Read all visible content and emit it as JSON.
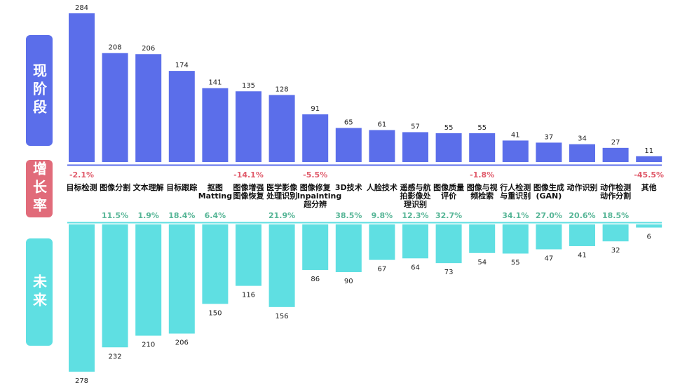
{
  "side_labels": {
    "current": "现阶段",
    "growth": "增长率",
    "future": "未来"
  },
  "colors": {
    "current_bar": "#5b6eea",
    "future_bar": "#5fdfe2",
    "negative_growth": "#e05a6a",
    "positive_growth": "#56b596",
    "divider_top": "#5b6eea",
    "divider_bottom": "#5fdfe2"
  },
  "chart_data": {
    "type": "bar",
    "title": "",
    "categories": [
      "目标检测",
      "图像分割",
      "文本理解",
      "目标跟踪",
      "抠图\nMatting",
      "图像增强\n图像恢复",
      "医学影像\n处理识别",
      "图像修复\nInpainting\n超分辨",
      "3D技术",
      "人脸技术",
      "遥感与航\n拍影像处\n理识别",
      "图像质量\n评价",
      "图像与视\n频检索",
      "行人检测\n与重识别",
      "图像生成\n(GAN)",
      "动作识别",
      "动作检测\n动作分割",
      "其他"
    ],
    "series": [
      {
        "name": "现阶段",
        "values": [
          284,
          208,
          206,
          174,
          141,
          135,
          128,
          91,
          65,
          61,
          57,
          55,
          55,
          41,
          37,
          34,
          27,
          11
        ]
      },
      {
        "name": "未来",
        "values": [
          278,
          232,
          210,
          206,
          150,
          116,
          156,
          86,
          90,
          67,
          64,
          73,
          54,
          55,
          47,
          41,
          32,
          6
        ]
      }
    ],
    "growth_rates": [
      "-2.1%",
      "11.5%",
      "1.9%",
      "18.4%",
      "6.4%",
      "-14.1%",
      "21.9%",
      "-5.5%",
      "38.5%",
      "9.8%",
      "12.3%",
      "32.7%",
      "-1.8%",
      "34.1%",
      "27.0%",
      "20.6%",
      "18.5%",
      "-45.5%"
    ],
    "growth_positive": [
      false,
      true,
      true,
      true,
      true,
      false,
      true,
      false,
      true,
      true,
      true,
      true,
      false,
      true,
      true,
      true,
      true,
      false
    ]
  }
}
